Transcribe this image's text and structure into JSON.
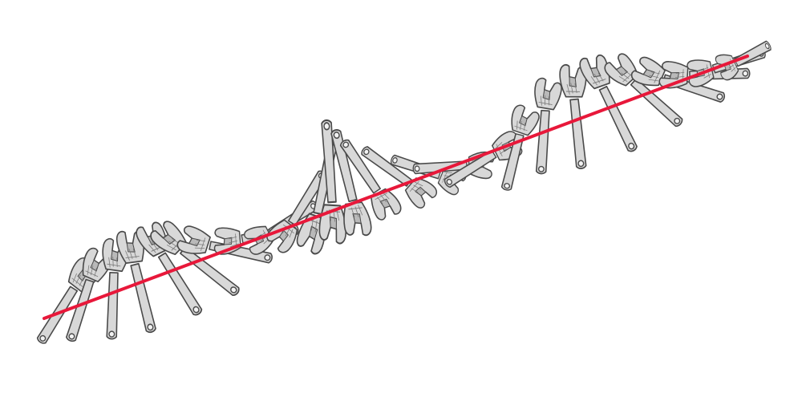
{
  "colors": {
    "background": "#ffffff",
    "trajectory_line": "#e8183a",
    "wrench_fill": "#d8d8d8",
    "wrench_outline": "#4a4a4a",
    "wrench_highlight": "#f2f2f2",
    "jaw_shadow": "#b9b9b9"
  },
  "scene": {
    "subject": "adjustable-wrench",
    "wrench_poses": 27,
    "center_of_mass_path": "straight-line"
  }
}
